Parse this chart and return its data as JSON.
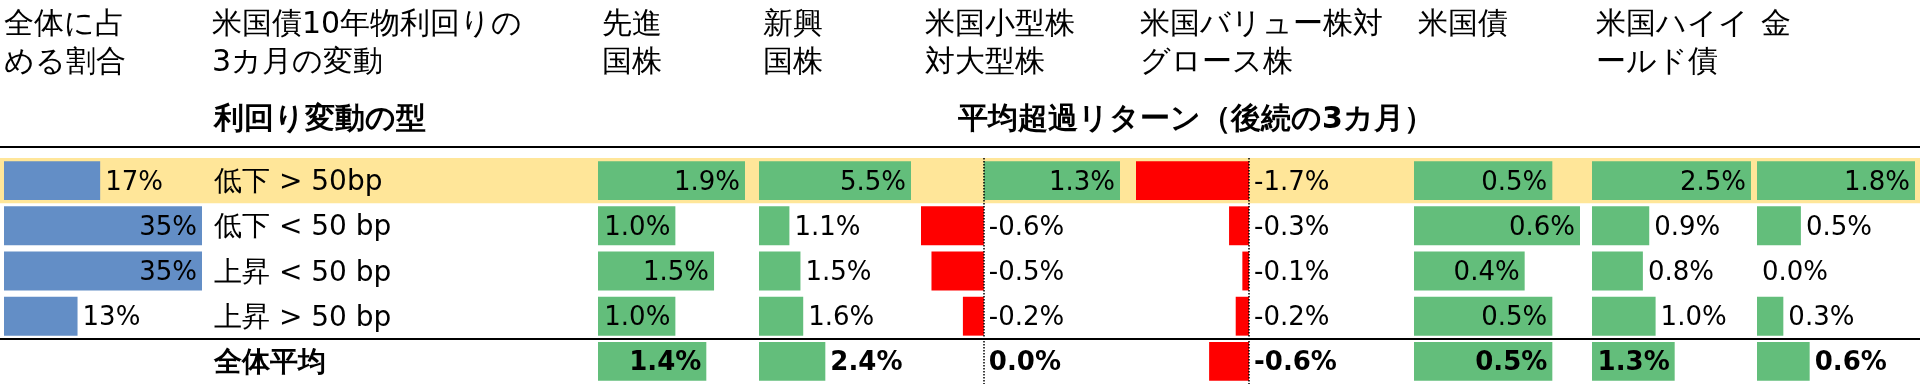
{
  "chart_data": [
    {
      "type": "bar",
      "orientation": "horizontal",
      "title": "全体に占める割合",
      "ylabel": "米国債10年物利回りの3カ月の変動",
      "subtitle": "利回り変動の型",
      "categories": [
        "低下 > 50bp",
        "低下 < 50 bp",
        "上昇 < 50 bp",
        "上昇 > 50 bp",
        "全体平均"
      ],
      "values": [
        17,
        35,
        35,
        13,
        null
      ],
      "color": "#638ec6",
      "xlim": [
        0,
        35
      ],
      "value_labels": [
        "17%",
        "35%",
        "35%",
        "13%",
        null
      ],
      "tick_labels": "y",
      "bands": [
        {
          "axis": "y",
          "from": "低下 > 50bp",
          "to": "低下 > 50bp",
          "color": "#ffe699"
        }
      ]
    },
    {
      "type": "bar",
      "orientation": "horizontal",
      "title": "先進国株",
      "categories": [
        "低下 > 50bp",
        "低下 < 50 bp",
        "上昇 < 50 bp",
        "上昇 > 50 bp",
        "全体平均"
      ],
      "values": [
        1.9,
        1.0,
        1.5,
        1.0,
        1.4
      ],
      "color": "#63be7b",
      "xlim": [
        0,
        1.9
      ],
      "value_labels": [
        "1.9%",
        "1.0%",
        "1.5%",
        "1.0%",
        "1.4%"
      ],
      "tick_labels": false,
      "bands": [
        {
          "axis": "y",
          "from": "低下 > 50bp",
          "to": "低下 > 50bp",
          "color": "#ffe699"
        }
      ]
    },
    {
      "type": "bar",
      "orientation": "horizontal",
      "title": "新興国株",
      "categories": [
        "低下 > 50bp",
        "低下 < 50 bp",
        "上昇 < 50 bp",
        "上昇 > 50 bp",
        "全体平均"
      ],
      "values": [
        5.5,
        1.1,
        1.5,
        1.6,
        2.4
      ],
      "color": "#63be7b",
      "xlim": [
        0,
        5.5
      ],
      "value_labels": [
        "5.5%",
        "1.1%",
        "1.5%",
        "1.6%",
        "2.4%"
      ],
      "tick_labels": false,
      "bands": [
        {
          "axis": "y",
          "from": "低下 > 50bp",
          "to": "低下 > 50bp",
          "color": "#ffe699"
        }
      ]
    },
    {
      "type": "bar",
      "orientation": "horizontal",
      "title": "米国小型株対大型株",
      "categories": [
        "低下 > 50bp",
        "低下 < 50 bp",
        "上昇 < 50 bp",
        "上昇 > 50 bp",
        "全体平均"
      ],
      "values": [
        1.3,
        -0.6,
        -0.5,
        -0.2,
        0.0
      ],
      "colors": [
        "#63be7b",
        "#ff0000",
        "#ff0000",
        "#ff0000",
        "#63be7b"
      ],
      "xlim": [
        -0.6,
        1.3
      ],
      "value_labels": [
        "1.3%",
        "-0.6%",
        "-0.5%",
        "-0.2%",
        "0.0%"
      ],
      "tick_labels": false,
      "ref_lines": [
        {
          "axis": "x",
          "value": 0,
          "color": "#000000",
          "line_style": "dotted"
        }
      ],
      "bands": [
        {
          "axis": "y",
          "from": "低下 > 50bp",
          "to": "低下 > 50bp",
          "color": "#ffe699"
        }
      ]
    },
    {
      "type": "bar",
      "orientation": "horizontal",
      "title": "米国バリュー株対グロース株",
      "subtitle": "平均超過リターン（後続の3カ月）",
      "categories": [
        "低下 > 50bp",
        "低下 < 50 bp",
        "上昇 < 50 bp",
        "上昇 > 50 bp",
        "全体平均"
      ],
      "values": [
        -1.7,
        -0.3,
        -0.1,
        -0.2,
        -0.6
      ],
      "color": "#ff0000",
      "xlim": [
        -1.7,
        0
      ],
      "value_labels": [
        "-1.7%",
        "-0.3%",
        "-0.1%",
        "-0.2%",
        "-0.6%"
      ],
      "tick_labels": false,
      "ref_lines": [
        {
          "axis": "x",
          "value": 0,
          "color": "#000000",
          "line_style": "dotted"
        }
      ],
      "bands": [
        {
          "axis": "y",
          "from": "低下 > 50bp",
          "to": "低下 > 50bp",
          "color": "#ffe699"
        }
      ]
    },
    {
      "type": "bar",
      "orientation": "horizontal",
      "title": "米国債",
      "categories": [
        "低下 > 50bp",
        "低下 < 50 bp",
        "上昇 < 50 bp",
        "上昇 > 50 bp",
        "全体平均"
      ],
      "values": [
        0.5,
        0.6,
        0.4,
        0.5,
        0.5
      ],
      "color": "#63be7b",
      "xlim": [
        0,
        0.6
      ],
      "value_labels": [
        "0.5%",
        "0.6%",
        "0.4%",
        "0.5%",
        "0.5%"
      ],
      "tick_labels": false,
      "bands": [
        {
          "axis": "y",
          "from": "低下 > 50bp",
          "to": "低下 > 50bp",
          "color": "#ffe699"
        }
      ]
    },
    {
      "type": "bar",
      "orientation": "horizontal",
      "title": "米国ハイイールド債",
      "categories": [
        "低下 > 50bp",
        "低下 < 50 bp",
        "上昇 < 50 bp",
        "上昇 > 50 bp",
        "全体平均"
      ],
      "values": [
        2.5,
        0.9,
        0.8,
        1.0,
        1.3
      ],
      "color": "#63be7b",
      "xlim": [
        0,
        2.5
      ],
      "value_labels": [
        "2.5%",
        "0.9%",
        "0.8%",
        "1.0%",
        "1.3%"
      ],
      "tick_labels": false,
      "bands": [
        {
          "axis": "y",
          "from": "低下 > 50bp",
          "to": "低下 > 50bp",
          "color": "#ffe699"
        }
      ]
    },
    {
      "type": "bar",
      "orientation": "horizontal",
      "title": "金",
      "categories": [
        "低下 > 50bp",
        "低下 < 50 bp",
        "上昇 < 50 bp",
        "上昇 > 50 bp",
        "全体平均"
      ],
      "values": [
        1.8,
        0.5,
        0.0,
        0.3,
        0.6
      ],
      "color": "#63be7b",
      "xlim": [
        0,
        1.8
      ],
      "value_labels": [
        "1.8%",
        "0.5%",
        "0.0%",
        "0.3%",
        "0.6%"
      ],
      "tick_labels": false,
      "bands": [
        {
          "axis": "y",
          "from": "低下 > 50bp",
          "to": "低下 > 50bp",
          "color": "#ffe699"
        }
      ]
    }
  ]
}
